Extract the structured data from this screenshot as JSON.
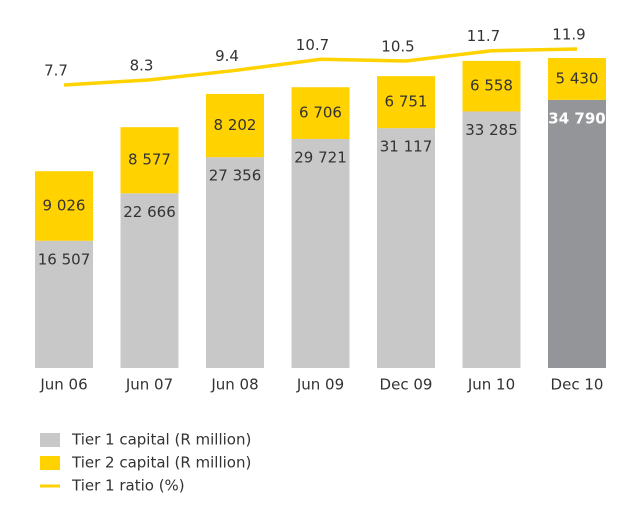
{
  "chart_data": {
    "type": "bar",
    "categories": [
      "Jun 06",
      "Jun 07",
      "Jun 08",
      "Jun 09",
      "Dec 09",
      "Jun 10",
      "Dec 10"
    ],
    "series": [
      {
        "name": "Tier 1 capital (R million)",
        "color": "#c8c8c8",
        "colors": [
          "#c8c8c8",
          "#c8c8c8",
          "#c8c8c8",
          "#c8c8c8",
          "#c8c8c8",
          "#c8c8c8",
          "#939598"
        ],
        "values": [
          16507,
          22666,
          27356,
          29721,
          31117,
          33285,
          34790
        ],
        "value_labels": [
          "16 507",
          "22 666",
          "27 356",
          "29 721",
          "31 117",
          "33 285",
          "34 790"
        ]
      },
      {
        "name": "Tier 2 capital (R million)",
        "color": "#ffd200",
        "values": [
          9026,
          8577,
          8202,
          6706,
          6751,
          6558,
          5430
        ],
        "value_labels": [
          "9 026",
          "8 577",
          "8 202",
          "6 706",
          "6 751",
          "6 558",
          "5 430"
        ]
      },
      {
        "name": "Tier 1 ratio (%)",
        "color": "#ffd200",
        "type": "line",
        "axis": "y2",
        "values": [
          7.7,
          8.3,
          9.4,
          10.7,
          10.5,
          11.7,
          11.9
        ]
      }
    ]
  }
}
